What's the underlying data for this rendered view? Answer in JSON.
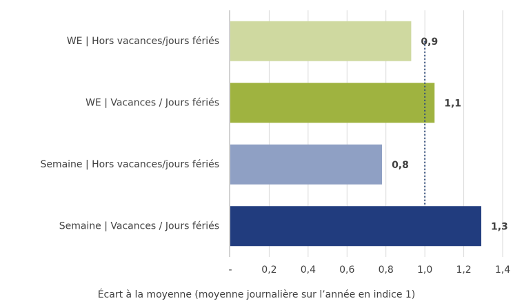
{
  "chart_data": {
    "type": "hbar",
    "categories": [
      "WE | Hors vacances/jours fériés",
      "WE | Vacances / Jours fériés",
      "Semaine | Hors vacances/jours fériés",
      "Semaine | Vacances / Jours fériés"
    ],
    "values": [
      0.93,
      1.05,
      0.78,
      1.29
    ],
    "value_labels": [
      "0,9",
      "1,1",
      "0,8",
      "1,3"
    ],
    "colors": [
      "#cfd9a0",
      "#9fb340",
      "#8fa0c4",
      "#213c7e"
    ],
    "xlabel": "Écart à la moyenne (moyenne journalière sur l’année en indice 1)",
    "xlim": [
      0,
      1.4
    ],
    "xticks": [
      {
        "value": 0,
        "label": "-"
      },
      {
        "value": 0.2,
        "label": "0,2"
      },
      {
        "value": 0.4,
        "label": "0,4"
      },
      {
        "value": 0.6,
        "label": "0,6"
      },
      {
        "value": 0.8,
        "label": "0,8"
      },
      {
        "value": 1,
        "label": "1,0"
      },
      {
        "value": 1.2,
        "label": "1,2"
      },
      {
        "value": 1.4,
        "label": "1,4"
      }
    ],
    "reference_line": {
      "value": 1,
      "color": "#2e4a7a"
    },
    "grid": true
  }
}
